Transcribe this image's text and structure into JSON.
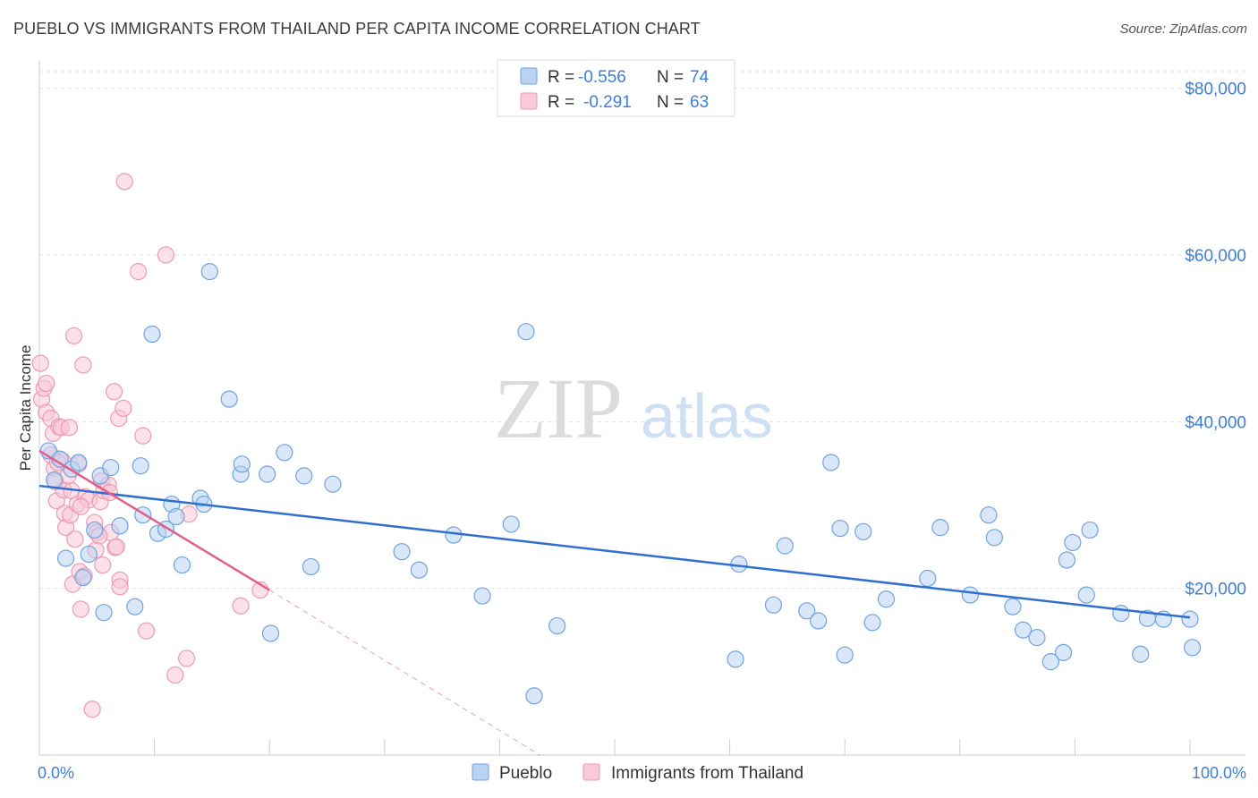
{
  "header": {
    "title": "PUEBLO VS IMMIGRANTS FROM THAILAND PER CAPITA INCOME CORRELATION CHART",
    "source": "Source: ZipAtlas.com"
  },
  "watermark": {
    "zip": "ZIP",
    "atlas": "atlas"
  },
  "legend": {
    "rows": [
      {
        "r_label": "R =",
        "r_value": "-0.556",
        "n_label": "N =",
        "n_value": "74",
        "color": "#a8c8f0"
      },
      {
        "r_label": "R =",
        "r_value": "-0.291",
        "n_label": "N =",
        "n_value": "63",
        "color": "#f5b8cb"
      }
    ]
  },
  "bottom_legend": [
    "Pueblo",
    "Immigrants from Thailand"
  ],
  "colors": {
    "pueblo_fill": "#b9d3f2",
    "pueblo_stroke": "#6fa3e0",
    "pueblo_line": "#2f6fd0",
    "thai_fill": "#f9c9d7",
    "thai_stroke": "#ec9ab5",
    "thai_line": "#e0608a",
    "axis_text": "#3f7ed4"
  },
  "chart_data": {
    "type": "scatter",
    "title": "PUEBLO VS IMMIGRANTS FROM THAILAND PER CAPITA INCOME CORRELATION CHART",
    "xlabel": "",
    "ylabel": "Per Capita Income",
    "xlim": [
      0,
      100
    ],
    "ylim": [
      0,
      82000
    ],
    "x_tick_labels": [
      "0.0%",
      "100.0%"
    ],
    "y_ticks": [
      20000,
      40000,
      60000,
      80000
    ],
    "y_tick_labels": [
      "$20,000",
      "$40,000",
      "$60,000",
      "$80,000"
    ],
    "grid": true,
    "legend_position": "top-center",
    "series": [
      {
        "name": "Pueblo",
        "r": -0.556,
        "n": 74,
        "trend": {
          "x": [
            0,
            100
          ],
          "y": [
            32300,
            16500
          ]
        },
        "points": [
          [
            0.8,
            36500
          ],
          [
            1.3,
            33000
          ],
          [
            1.8,
            35500
          ],
          [
            2.3,
            23600
          ],
          [
            2.8,
            34300
          ],
          [
            3.4,
            35100
          ],
          [
            3.8,
            21300
          ],
          [
            4.3,
            24100
          ],
          [
            4.8,
            27000
          ],
          [
            5.3,
            33500
          ],
          [
            5.6,
            17100
          ],
          [
            6.2,
            34500
          ],
          [
            7.0,
            27500
          ],
          [
            8.3,
            17800
          ],
          [
            8.8,
            34700
          ],
          [
            9.0,
            28800
          ],
          [
            9.8,
            50500
          ],
          [
            10.3,
            26600
          ],
          [
            11.0,
            27100
          ],
          [
            11.5,
            30100
          ],
          [
            11.9,
            28600
          ],
          [
            12.4,
            22800
          ],
          [
            14.0,
            30800
          ],
          [
            14.3,
            30100
          ],
          [
            14.8,
            58000
          ],
          [
            16.5,
            42700
          ],
          [
            17.5,
            33700
          ],
          [
            17.6,
            34900
          ],
          [
            19.8,
            33700
          ],
          [
            20.1,
            14600
          ],
          [
            21.3,
            36300
          ],
          [
            23.0,
            33500
          ],
          [
            23.6,
            22600
          ],
          [
            25.5,
            32500
          ],
          [
            31.5,
            24400
          ],
          [
            33.0,
            22200
          ],
          [
            36.0,
            26400
          ],
          [
            38.5,
            19100
          ],
          [
            41.0,
            27700
          ],
          [
            42.3,
            50800
          ],
          [
            43.0,
            7100
          ],
          [
            45.0,
            15500
          ],
          [
            60.5,
            11500
          ],
          [
            60.8,
            22900
          ],
          [
            63.8,
            18000
          ],
          [
            64.8,
            25100
          ],
          [
            66.7,
            17300
          ],
          [
            67.7,
            16100
          ],
          [
            68.8,
            35100
          ],
          [
            69.6,
            27200
          ],
          [
            70.0,
            12000
          ],
          [
            71.6,
            26800
          ],
          [
            72.4,
            15900
          ],
          [
            73.6,
            18700
          ],
          [
            77.2,
            21200
          ],
          [
            78.3,
            27300
          ],
          [
            80.9,
            19200
          ],
          [
            82.5,
            28800
          ],
          [
            83.0,
            26100
          ],
          [
            84.6,
            17800
          ],
          [
            85.5,
            15000
          ],
          [
            86.7,
            14100
          ],
          [
            87.9,
            11200
          ],
          [
            89.0,
            12300
          ],
          [
            89.3,
            23400
          ],
          [
            89.8,
            25500
          ],
          [
            91.0,
            19200
          ],
          [
            91.3,
            27000
          ],
          [
            94.0,
            17000
          ],
          [
            95.7,
            12100
          ],
          [
            96.3,
            16400
          ],
          [
            97.7,
            16300
          ],
          [
            100.2,
            12900
          ],
          [
            100.0,
            16300
          ]
        ]
      },
      {
        "name": "Immigrants from Thailand",
        "r": -0.291,
        "n": 63,
        "trend": {
          "x": [
            0,
            20
          ],
          "y": [
            36500,
            19800
          ]
        },
        "trend_dashed": {
          "x": [
            20,
            43.5
          ],
          "y": [
            19800,
            0
          ]
        },
        "points": [
          [
            0.1,
            47000
          ],
          [
            0.2,
            42700
          ],
          [
            0.4,
            44000
          ],
          [
            0.6,
            41100
          ],
          [
            0.6,
            44600
          ],
          [
            1.0,
            40400
          ],
          [
            1.2,
            38600
          ],
          [
            1.3,
            34400
          ],
          [
            1.4,
            32800
          ],
          [
            1.5,
            30500
          ],
          [
            1.7,
            39400
          ],
          [
            1.9,
            39300
          ],
          [
            2.0,
            35300
          ],
          [
            2.1,
            31800
          ],
          [
            2.2,
            29000
          ],
          [
            2.3,
            27300
          ],
          [
            2.6,
            39300
          ],
          [
            2.7,
            28800
          ],
          [
            2.8,
            31700
          ],
          [
            2.9,
            20500
          ],
          [
            3.0,
            50300
          ],
          [
            3.1,
            25900
          ],
          [
            3.3,
            30100
          ],
          [
            3.4,
            34900
          ],
          [
            3.5,
            22000
          ],
          [
            3.6,
            17500
          ],
          [
            3.8,
            46800
          ],
          [
            3.9,
            21500
          ],
          [
            4.0,
            31000
          ],
          [
            4.3,
            30600
          ],
          [
            4.6,
            5500
          ],
          [
            4.8,
            27900
          ],
          [
            4.9,
            24600
          ],
          [
            5.0,
            26700
          ],
          [
            5.3,
            30400
          ],
          [
            5.4,
            32900
          ],
          [
            5.5,
            22800
          ],
          [
            5.6,
            31700
          ],
          [
            6.0,
            32400
          ],
          [
            6.1,
            31500
          ],
          [
            6.2,
            26700
          ],
          [
            6.5,
            43600
          ],
          [
            6.6,
            24900
          ],
          [
            6.7,
            25000
          ],
          [
            6.9,
            40400
          ],
          [
            7.0,
            21000
          ],
          [
            7.0,
            20200
          ],
          [
            7.3,
            41600
          ],
          [
            7.4,
            68800
          ],
          [
            8.6,
            58000
          ],
          [
            9.0,
            38300
          ],
          [
            9.3,
            14900
          ],
          [
            11.0,
            60000
          ],
          [
            11.8,
            9600
          ],
          [
            12.8,
            11600
          ],
          [
            13.0,
            28900
          ],
          [
            17.5,
            17900
          ],
          [
            19.2,
            19800
          ],
          [
            1.0,
            36000
          ],
          [
            2.5,
            33500
          ],
          [
            3.6,
            29800
          ],
          [
            5.2,
            26300
          ],
          [
            1.6,
            35100
          ]
        ]
      }
    ]
  }
}
